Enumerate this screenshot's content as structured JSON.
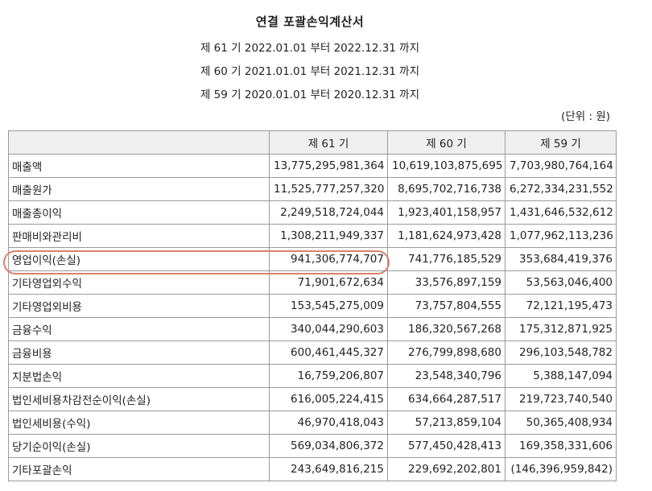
{
  "title": "연결 포괄손익계산서",
  "periods": [
    "제 61 기 2022.01.01 부터 2022.12.31 까지",
    "제 60 기 2021.01.01 부터 2021.12.31 까지",
    "제 59 기 2020.01.01 부터 2020.12.31 까지"
  ],
  "unit": "(단위 : 원)",
  "table": {
    "headers": [
      "",
      "제 61 기",
      "제 60 기",
      "제 59 기"
    ],
    "rows": [
      {
        "label": "매출액",
        "values": [
          "13,775,295,981,364",
          "10,619,103,875,695",
          "7,703,980,764,164"
        ]
      },
      {
        "label": "매출원가",
        "values": [
          "11,525,777,257,320",
          "8,695,702,716,738",
          "6,272,334,231,552"
        ]
      },
      {
        "label": "매출총이익",
        "values": [
          "2,249,518,724,044",
          "1,923,401,158,957",
          "1,431,646,532,612"
        ]
      },
      {
        "label": "판매비와관리비",
        "values": [
          "1,308,211,949,337",
          "1,181,624,973,428",
          "1,077,962,113,236"
        ]
      },
      {
        "label": "영업이익(손실)",
        "values": [
          "941,306,774,707",
          "741,776,185,529",
          "353,684,419,376"
        ]
      },
      {
        "label": "기타영업외수익",
        "values": [
          "71,901,672,634",
          "33,576,897,159",
          "53,563,046,400"
        ]
      },
      {
        "label": "기타영업외비용",
        "values": [
          "153,545,275,009",
          "73,757,804,555",
          "72,121,195,473"
        ]
      },
      {
        "label": "금융수익",
        "values": [
          "340,044,290,603",
          "186,320,567,268",
          "175,312,871,925"
        ]
      },
      {
        "label": "금융비용",
        "values": [
          "600,461,445,327",
          "276,799,898,680",
          "296,103,548,782"
        ]
      },
      {
        "label": "지분법손익",
        "values": [
          "16,759,206,807",
          "23,548,340,796",
          "5,388,147,094"
        ]
      },
      {
        "label": "법인세비용차감전순이익(손실)",
        "values": [
          "616,005,224,415",
          "634,664,287,517",
          "219,723,740,540"
        ]
      },
      {
        "label": "법인세비용(수익)",
        "values": [
          "46,970,418,043",
          "57,213,859,104",
          "50,365,408,934"
        ]
      },
      {
        "label": "당기순이익(손실)",
        "values": [
          "569,034,806,372",
          "577,450,428,413",
          "169,358,331,606"
        ]
      },
      {
        "label": "기타포괄손익",
        "values": [
          "243,649,816,215",
          "229,692,202,801",
          "(146,396,959,842)"
        ]
      }
    ]
  }
}
